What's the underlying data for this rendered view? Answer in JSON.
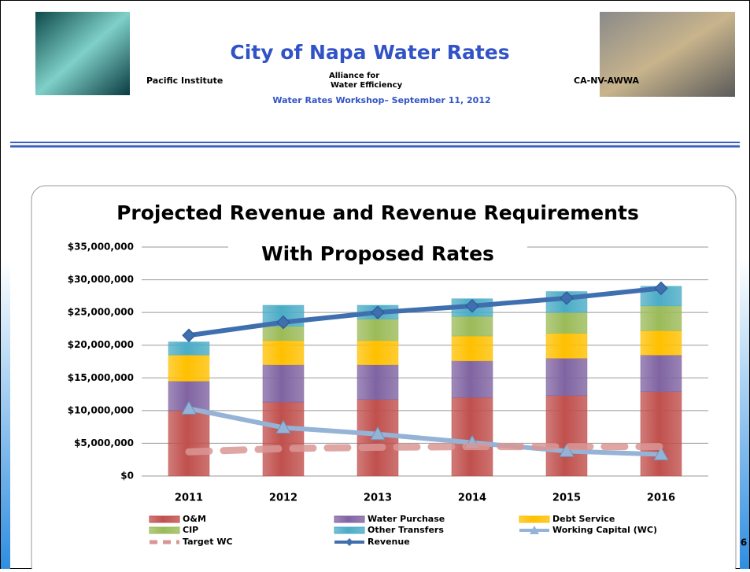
{
  "header": {
    "title": "City of Napa Water Rates",
    "orgs": [
      "Pacific Institute",
      "Alliance for\nWater Efficiency",
      "CA-NV-AWWA"
    ],
    "workshop": "Water Rates Workshop– September 11, 2012"
  },
  "page_number": "6",
  "chart_data": {
    "type": "stacked-bar-line",
    "title": [
      "Projected Revenue and Revenue Requirements",
      "With Proposed Rates"
    ],
    "categories": [
      "2011",
      "2012",
      "2013",
      "2014",
      "2015",
      "2016"
    ],
    "ylim": [
      0,
      35000000
    ],
    "yticks": [
      {
        "value": 0,
        "label": "$0"
      },
      {
        "value": 5000000,
        "label": "$5,000,000"
      },
      {
        "value": 10000000,
        "label": "$10,000,000"
      },
      {
        "value": 15000000,
        "label": "$15,000,000"
      },
      {
        "value": 20000000,
        "label": "$20,000,000"
      },
      {
        "value": 25000000,
        "label": "$25,000,000"
      },
      {
        "value": 30000000,
        "label": "$30,000,000"
      },
      {
        "value": 35000000,
        "label": "$35,000,000"
      }
    ],
    "grid": true,
    "series": [
      {
        "name": "O&M",
        "color": "#c0504d",
        "kind": "bar",
        "values": [
          10000000,
          11300000,
          11700000,
          12000000,
          12300000,
          12900000
        ]
      },
      {
        "name": "Water Purchase",
        "color": "#8064a2",
        "kind": "bar",
        "values": [
          4500000,
          5700000,
          5300000,
          5600000,
          5700000,
          5600000
        ]
      },
      {
        "name": "Debt Service",
        "color": "#ffc000",
        "kind": "bar",
        "values": [
          4000000,
          3700000,
          3700000,
          3800000,
          3800000,
          3700000
        ]
      },
      {
        "name": "CIP",
        "color": "#9bbb59",
        "kind": "bar",
        "values": [
          0,
          2200000,
          3300000,
          3000000,
          3200000,
          3800000
        ]
      },
      {
        "name": "Other Transfers",
        "color": "#4bacc6",
        "kind": "bar",
        "values": [
          2000000,
          3200000,
          2100000,
          2700000,
          3200000,
          3000000
        ]
      },
      {
        "name": "Working Capital (WC)",
        "color": "#95b3d7",
        "kind": "line",
        "marker": "triangle",
        "values": [
          10300000,
          7400000,
          6400000,
          5100000,
          3800000,
          3300000
        ]
      },
      {
        "name": "Target WC",
        "color": "#d99694",
        "kind": "line",
        "dashed": true,
        "values": [
          3700000,
          4200000,
          4400000,
          4500000,
          4500000,
          4500000
        ]
      },
      {
        "name": "Revenue",
        "color": "#3f6fae",
        "kind": "line",
        "marker": "diamond",
        "values": [
          21500000,
          23500000,
          25000000,
          26000000,
          27200000,
          28700000
        ]
      }
    ]
  }
}
